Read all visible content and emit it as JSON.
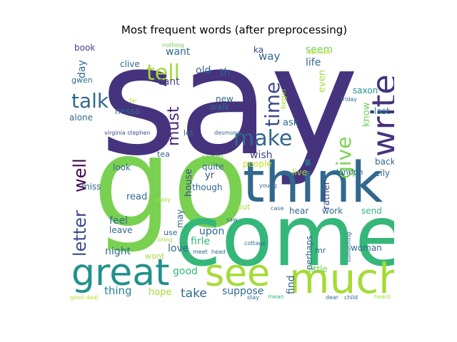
{
  "title": "Most frequent words (after preprocessing)",
  "words": [
    {
      "text": "say",
      "color": "#46337e",
      "rot": false
    },
    {
      "text": "go",
      "color": "#7ad151",
      "rot": false
    },
    {
      "text": "come",
      "color": "#35b779",
      "rot": false
    },
    {
      "text": "think",
      "color": "#31688e",
      "rot": false
    },
    {
      "text": "write",
      "color": "#46337e",
      "rot": true
    },
    {
      "text": "much",
      "color": "#a5db36",
      "rot": false
    },
    {
      "text": "great",
      "color": "#21918c",
      "rot": false
    },
    {
      "text": "see",
      "color": "#a5db36",
      "rot": false
    },
    {
      "text": "make",
      "color": "#31688e",
      "rot": false
    },
    {
      "text": "give",
      "color": "#7ad151",
      "rot": true
    },
    {
      "text": "time",
      "color": "#3e4989",
      "rot": true
    },
    {
      "text": "tell",
      "color": "#a5db36",
      "rot": false
    },
    {
      "text": "talk",
      "color": "#31688e",
      "rot": false
    },
    {
      "text": "letter",
      "color": "#3e4989",
      "rot": true
    },
    {
      "text": "well",
      "color": "#440154",
      "rot": true
    },
    {
      "text": "must",
      "color": "#482878",
      "rot": true
    },
    {
      "text": "want",
      "color": "#31688e",
      "rot": false
    },
    {
      "text": "cant",
      "color": "#414487",
      "rot": false
    },
    {
      "text": "old",
      "color": "#31688e",
      "rot": false
    },
    {
      "text": "th",
      "color": "#31688e",
      "rot": false
    },
    {
      "text": "day",
      "color": "#31688e",
      "rot": true
    },
    {
      "text": "book",
      "color": "#414487",
      "rot": false
    },
    {
      "text": "clive",
      "color": "#31688e",
      "rot": false
    },
    {
      "text": "gwen",
      "color": "#31688e",
      "rot": false
    },
    {
      "text": "nothing",
      "color": "#6ece58",
      "rot": false
    },
    {
      "text": "ka",
      "color": "#3e4989",
      "rot": false
    },
    {
      "text": "way",
      "color": "#31688e",
      "rot": false
    },
    {
      "text": "seem",
      "color": "#7ad151",
      "rot": false
    },
    {
      "text": "life",
      "color": "#31688e",
      "rot": false
    },
    {
      "text": "beloved",
      "color": "#b5de2b",
      "rot": false
    },
    {
      "text": "even",
      "color": "#a5db36",
      "rot": true
    },
    {
      "text": "saxon",
      "color": "#21918c",
      "rot": false
    },
    {
      "text": "friday",
      "color": "#31688e",
      "rot": false
    },
    {
      "text": "last",
      "color": "#26828e",
      "rot": false
    },
    {
      "text": "begin",
      "color": "#a5db36",
      "rot": true
    },
    {
      "text": "know",
      "color": "#6ece58",
      "rot": true
    },
    {
      "text": "new",
      "color": "#31688e",
      "rot": false
    },
    {
      "text": "walk",
      "color": "#31688e",
      "rot": false
    },
    {
      "text": "far",
      "color": "#b5de2b",
      "rot": false
    },
    {
      "text": "nessa",
      "color": "#31688e",
      "rot": false
    },
    {
      "text": "alone",
      "color": "#31688e",
      "rot": false
    },
    {
      "text": "virginia stephen",
      "color": "#3e4989",
      "rot": false
    },
    {
      "text": "desmond",
      "color": "#31688e",
      "rot": false
    },
    {
      "text": "let",
      "color": "#31688e",
      "rot": false
    },
    {
      "text": "ask",
      "color": "#31688e",
      "rot": false
    },
    {
      "text": "wish",
      "color": "#3e4989",
      "rot": false
    },
    {
      "text": "tea",
      "color": "#31688e",
      "rot": false
    },
    {
      "text": "room",
      "color": "#7ad151",
      "rot": false
    },
    {
      "text": "quite",
      "color": "#31688e",
      "rot": false
    },
    {
      "text": "people",
      "color": "#c2df23",
      "rot": false
    },
    {
      "text": "back",
      "color": "#31688e",
      "rot": false
    },
    {
      "text": "eily",
      "color": "#31688e",
      "rot": false
    },
    {
      "text": "london",
      "color": "#31688e",
      "rot": false
    },
    {
      "text": "live",
      "color": "#a5db36",
      "rot": false
    },
    {
      "text": "rather",
      "color": "#3e4989",
      "rot": true
    },
    {
      "text": "look",
      "color": "#31688e",
      "rot": false
    },
    {
      "text": "house",
      "color": "#3e4989",
      "rot": true
    },
    {
      "text": "yr",
      "color": "#3e4989",
      "rot": false
    },
    {
      "text": "miss",
      "color": "#31688e",
      "rot": false
    },
    {
      "text": "though",
      "color": "#31688e",
      "rot": false
    },
    {
      "text": "young",
      "color": "#31688e",
      "rot": false
    },
    {
      "text": "read",
      "color": "#31688e",
      "rot": false
    },
    {
      "text": "really",
      "color": "#a5db36",
      "rot": false
    },
    {
      "text": "put",
      "color": "#a5db36",
      "rot": false
    },
    {
      "text": "case",
      "color": "#31688e",
      "rot": false
    },
    {
      "text": "hear",
      "color": "#31688e",
      "rot": false
    },
    {
      "text": "work",
      "color": "#31688e",
      "rot": false
    },
    {
      "text": "send",
      "color": "#35b779",
      "rot": false
    },
    {
      "text": "may",
      "color": "#31688e",
      "rot": true
    },
    {
      "text": "feel",
      "color": "#31688e",
      "rot": false
    },
    {
      "text": "leave",
      "color": "#31688e",
      "rot": false
    },
    {
      "text": "saw",
      "color": "#31688e",
      "rot": false
    },
    {
      "text": "upon",
      "color": "#31688e",
      "rot": false
    },
    {
      "text": "use",
      "color": "#31688e",
      "rot": false
    },
    {
      "text": "firle",
      "color": "#35b779",
      "rot": false
    },
    {
      "text": "bring",
      "color": "#a5db36",
      "rot": false
    },
    {
      "text": "perhaps",
      "color": "#31688e",
      "rot": true
    },
    {
      "text": "mr",
      "color": "#31688e",
      "rot": false
    },
    {
      "text": "something",
      "color": "#31688e",
      "rot": true
    },
    {
      "text": "woman",
      "color": "#31688e",
      "rot": false
    },
    {
      "text": "love",
      "color": "#31688e",
      "rot": false
    },
    {
      "text": "night",
      "color": "#31688e",
      "rot": false
    },
    {
      "text": "wont",
      "color": "#a5db36",
      "rot": false
    },
    {
      "text": "cottage",
      "color": "#31688e",
      "rot": false
    },
    {
      "text": "meet",
      "color": "#31688e",
      "rot": false
    },
    {
      "text": "head",
      "color": "#31688e",
      "rot": false
    },
    {
      "text": "find",
      "color": "#31688e",
      "rot": true
    },
    {
      "text": "little",
      "color": "#6ece58",
      "rot": false
    },
    {
      "text": "adrian",
      "color": "#21918c",
      "rot": true
    },
    {
      "text": "good",
      "color": "#35b779",
      "rot": false
    },
    {
      "text": "thing",
      "color": "#26828e",
      "rot": false
    },
    {
      "text": "hope",
      "color": "#a5db36",
      "rot": false
    },
    {
      "text": "take",
      "color": "#31688e",
      "rot": false
    },
    {
      "text": "suppose",
      "color": "#31688e",
      "rot": false
    },
    {
      "text": "good deal",
      "color": "#b5de2b",
      "rot": false
    },
    {
      "text": "stay",
      "color": "#31688e",
      "rot": false
    },
    {
      "text": "mean",
      "color": "#35b779",
      "rot": false
    },
    {
      "text": "dear",
      "color": "#31688e",
      "rot": false
    },
    {
      "text": "child",
      "color": "#31688e",
      "rot": false
    },
    {
      "text": "heard",
      "color": "#a5db36",
      "rot": false
    }
  ]
}
